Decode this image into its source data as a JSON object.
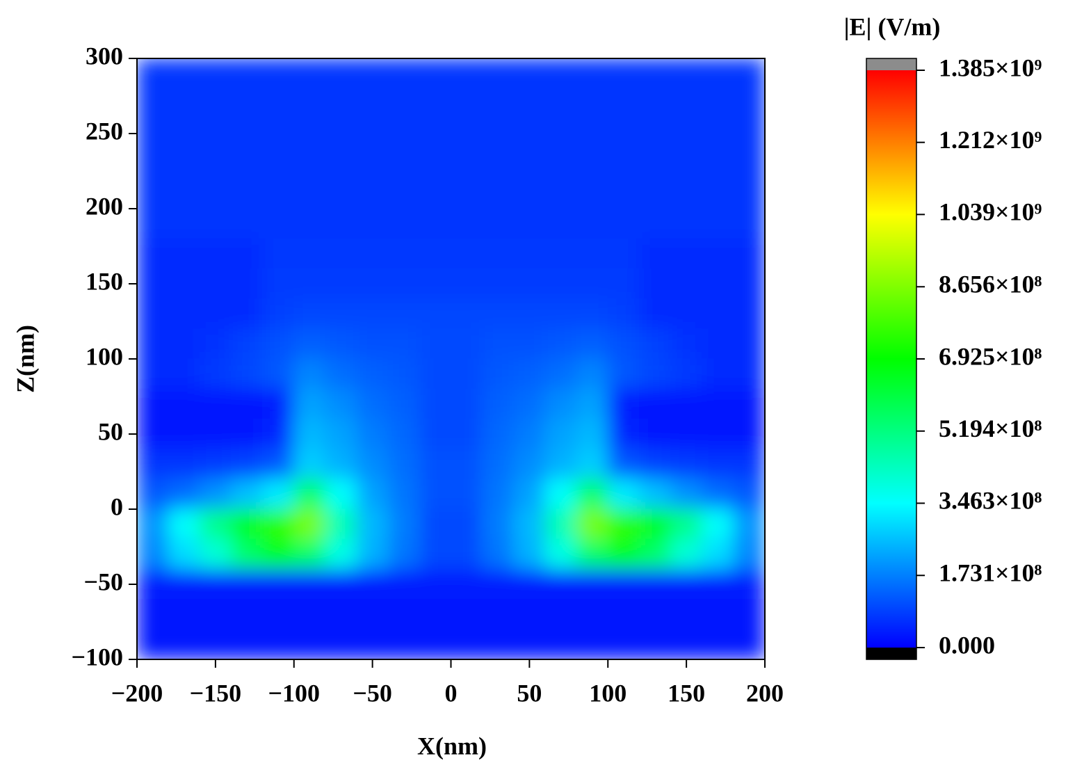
{
  "chart_data": {
    "type": "heatmap",
    "xlabel": "X(nm)",
    "ylabel": "Z(nm)",
    "colorbar_label": "|E| (V/m)",
    "xlim": [
      -200,
      200
    ],
    "ylim": [
      -100,
      300
    ],
    "xticks": [
      {
        "value": -200,
        "label": "−200"
      },
      {
        "value": -150,
        "label": "−150"
      },
      {
        "value": -100,
        "label": "−100"
      },
      {
        "value": -50,
        "label": "−50"
      },
      0,
      50,
      100,
      150,
      200
    ],
    "yticks": [
      {
        "value": -100,
        "label": "−100"
      },
      {
        "value": -50,
        "label": "−50"
      },
      0,
      50,
      100,
      150,
      200,
      250,
      300
    ],
    "clim": [
      0,
      1385000000
    ],
    "cticks": [
      {
        "value": 0,
        "label": "0.000"
      },
      {
        "value": 173100000,
        "label": "1.731×10⁸"
      },
      {
        "value": 346300000,
        "label": "3.463×10⁸"
      },
      {
        "value": 519400000,
        "label": "5.194×10⁸"
      },
      {
        "value": 692500000,
        "label": "6.925×10⁸"
      },
      {
        "value": 865600000,
        "label": "8.656×10⁸"
      },
      {
        "value": 1039000000,
        "label": "1.039×10⁹"
      },
      {
        "value": 1212000000,
        "label": "1.212×10⁹"
      },
      {
        "value": 1385000000,
        "label": "1.385×10⁹"
      }
    ],
    "colormap": [
      "#0000ff",
      "#00ffff",
      "#00ff00",
      "#ffff00",
      "#ff0000"
    ],
    "over_color": "#8c8c8c",
    "under_color": "#000000",
    "x": [
      -190,
      -170,
      -150,
      -130,
      -110,
      -90,
      -70,
      -50,
      -30,
      -10,
      10,
      30,
      50,
      70,
      90,
      110,
      130,
      150,
      170,
      190
    ],
    "y": [
      290,
      270,
      250,
      230,
      210,
      190,
      170,
      150,
      130,
      110,
      90,
      70,
      50,
      30,
      10,
      -10,
      -30,
      -50,
      -70,
      -90
    ],
    "z": [
      [
        70000000.0,
        70000000.0,
        70000000.0,
        70000000.0,
        70000000.0,
        70000000.0,
        70000000.0,
        70000000.0,
        70000000.0,
        70000000.0,
        70000000.0,
        70000000.0,
        70000000.0,
        70000000.0,
        70000000.0,
        70000000.0,
        70000000.0,
        70000000.0,
        70000000.0,
        70000000.0
      ],
      [
        70000000.0,
        70000000.0,
        70000000.0,
        70000000.0,
        70000000.0,
        70000000.0,
        70000000.0,
        70000000.0,
        70000000.0,
        70000000.0,
        70000000.0,
        70000000.0,
        70000000.0,
        70000000.0,
        70000000.0,
        70000000.0,
        70000000.0,
        70000000.0,
        70000000.0,
        70000000.0
      ],
      [
        70000000.0,
        70000000.0,
        70000000.0,
        70000000.0,
        70000000.0,
        70000000.0,
        70000000.0,
        70000000.0,
        70000000.0,
        70000000.0,
        70000000.0,
        70000000.0,
        70000000.0,
        70000000.0,
        70000000.0,
        70000000.0,
        70000000.0,
        70000000.0,
        70000000.0,
        70000000.0
      ],
      [
        70000000.0,
        70000000.0,
        70000000.0,
        70000000.0,
        70000000.0,
        70000000.0,
        70000000.0,
        70000000.0,
        70000000.0,
        70000000.0,
        70000000.0,
        70000000.0,
        70000000.0,
        70000000.0,
        70000000.0,
        70000000.0,
        70000000.0,
        70000000.0,
        70000000.0,
        70000000.0
      ],
      [
        70000000.0,
        70000000.0,
        70000000.0,
        70000000.0,
        70000000.0,
        70000000.0,
        70000000.0,
        70000000.0,
        70000000.0,
        70000000.0,
        70000000.0,
        70000000.0,
        70000000.0,
        70000000.0,
        70000000.0,
        70000000.0,
        70000000.0,
        70000000.0,
        70000000.0,
        70000000.0
      ],
      [
        70000000.0,
        70000000.0,
        70000000.0,
        70000000.0,
        70000000.0,
        70000000.0,
        70000000.0,
        70000000.0,
        70000000.0,
        70000000.0,
        70000000.0,
        70000000.0,
        70000000.0,
        70000000.0,
        70000000.0,
        70000000.0,
        70000000.0,
        70000000.0,
        70000000.0,
        70000000.0
      ],
      [
        60000000.0,
        60000000.0,
        60000000.0,
        60000000.0,
        75000000.0,
        75000000.0,
        75000000.0,
        75000000.0,
        75000000.0,
        75000000.0,
        75000000.0,
        75000000.0,
        75000000.0,
        75000000.0,
        75000000.0,
        75000000.0,
        60000000.0,
        60000000.0,
        60000000.0,
        60000000.0
      ],
      [
        60000000.0,
        60000000.0,
        60000000.0,
        60000000.0,
        80000000.0,
        80000000.0,
        80000000.0,
        80000000.0,
        80000000.0,
        80000000.0,
        80000000.0,
        80000000.0,
        80000000.0,
        80000000.0,
        80000000.0,
        80000000.0,
        60000000.0,
        60000000.0,
        60000000.0,
        60000000.0
      ],
      [
        60000000.0,
        60000000.0,
        60000000.0,
        60000000.0,
        85000000.0,
        95000000.0,
        95000000.0,
        95000000.0,
        95000000.0,
        95000000.0,
        95000000.0,
        95000000.0,
        95000000.0,
        95000000.0,
        95000000.0,
        85000000.0,
        60000000.0,
        60000000.0,
        60000000.0,
        60000000.0
      ],
      [
        60000000.0,
        60000000.0,
        65000000.0,
        90000000.0,
        110000000.0,
        130000000.0,
        120000000.0,
        110000000.0,
        110000000.0,
        100000000.0,
        100000000.0,
        110000000.0,
        110000000.0,
        120000000.0,
        130000000.0,
        110000000.0,
        90000000.0,
        65000000.0,
        60000000.0,
        60000000.0
      ],
      [
        60000000.0,
        60000000.0,
        80000000.0,
        95000000.0,
        120000000.0,
        180000000.0,
        150000000.0,
        130000000.0,
        120000000.0,
        100000000.0,
        100000000.0,
        120000000.0,
        130000000.0,
        150000000.0,
        180000000.0,
        120000000.0,
        95000000.0,
        80000000.0,
        60000000.0,
        60000000.0
      ],
      [
        30000000.0,
        30000000.0,
        30000000.0,
        30000000.0,
        40000000.0,
        220000000.0,
        190000000.0,
        150000000.0,
        130000000.0,
        100000000.0,
        100000000.0,
        130000000.0,
        150000000.0,
        190000000.0,
        220000000.0,
        40000000.0,
        30000000.0,
        30000000.0,
        30000000.0,
        30000000.0
      ],
      [
        30000000.0,
        30000000.0,
        30000000.0,
        30000000.0,
        50000000.0,
        250000000.0,
        220000000.0,
        170000000.0,
        140000000.0,
        100000000.0,
        100000000.0,
        140000000.0,
        170000000.0,
        220000000.0,
        250000000.0,
        50000000.0,
        30000000.0,
        30000000.0,
        30000000.0,
        30000000.0
      ],
      [
        70000000.0,
        70000000.0,
        80000000.0,
        90000000.0,
        120000000.0,
        280000000.0,
        240000000.0,
        190000000.0,
        150000000.0,
        110000000.0,
        110000000.0,
        150000000.0,
        190000000.0,
        240000000.0,
        280000000.0,
        120000000.0,
        90000000.0,
        80000000.0,
        70000000.0,
        70000000.0
      ],
      [
        120000000.0,
        150000000.0,
        200000000.0,
        260000000.0,
        320000000.0,
        550000000.0,
        350000000.0,
        220000000.0,
        160000000.0,
        110000000.0,
        110000000.0,
        160000000.0,
        220000000.0,
        350000000.0,
        550000000.0,
        320000000.0,
        260000000.0,
        200000000.0,
        150000000.0,
        120000000.0
      ],
      [
        200000000.0,
        350000000.0,
        500000000.0,
        650000000.0,
        750000000.0,
        850000000.0,
        450000000.0,
        250000000.0,
        170000000.0,
        100000000.0,
        100000000.0,
        170000000.0,
        250000000.0,
        450000000.0,
        850000000.0,
        750000000.0,
        650000000.0,
        500000000.0,
        350000000.0,
        200000000.0
      ],
      [
        180000000.0,
        300000000.0,
        400000000.0,
        550000000.0,
        650000000.0,
        550000000.0,
        380000000.0,
        240000000.0,
        160000000.0,
        100000000.0,
        100000000.0,
        160000000.0,
        240000000.0,
        380000000.0,
        550000000.0,
        650000000.0,
        550000000.0,
        400000000.0,
        300000000.0,
        180000000.0
      ],
      [
        40000000.0,
        40000000.0,
        40000000.0,
        40000000.0,
        40000000.0,
        40000000.0,
        40000000.0,
        40000000.0,
        40000000.0,
        40000000.0,
        40000000.0,
        40000000.0,
        40000000.0,
        40000000.0,
        40000000.0,
        40000000.0,
        40000000.0,
        40000000.0,
        40000000.0,
        40000000.0
      ],
      [
        30000000.0,
        30000000.0,
        30000000.0,
        30000000.0,
        30000000.0,
        30000000.0,
        30000000.0,
        30000000.0,
        30000000.0,
        30000000.0,
        30000000.0,
        30000000.0,
        30000000.0,
        30000000.0,
        30000000.0,
        30000000.0,
        30000000.0,
        30000000.0,
        30000000.0,
        30000000.0
      ],
      [
        30000000.0,
        30000000.0,
        30000000.0,
        30000000.0,
        30000000.0,
        30000000.0,
        30000000.0,
        30000000.0,
        30000000.0,
        30000000.0,
        30000000.0,
        30000000.0,
        30000000.0,
        30000000.0,
        30000000.0,
        30000000.0,
        30000000.0,
        30000000.0,
        30000000.0,
        30000000.0
      ]
    ]
  }
}
